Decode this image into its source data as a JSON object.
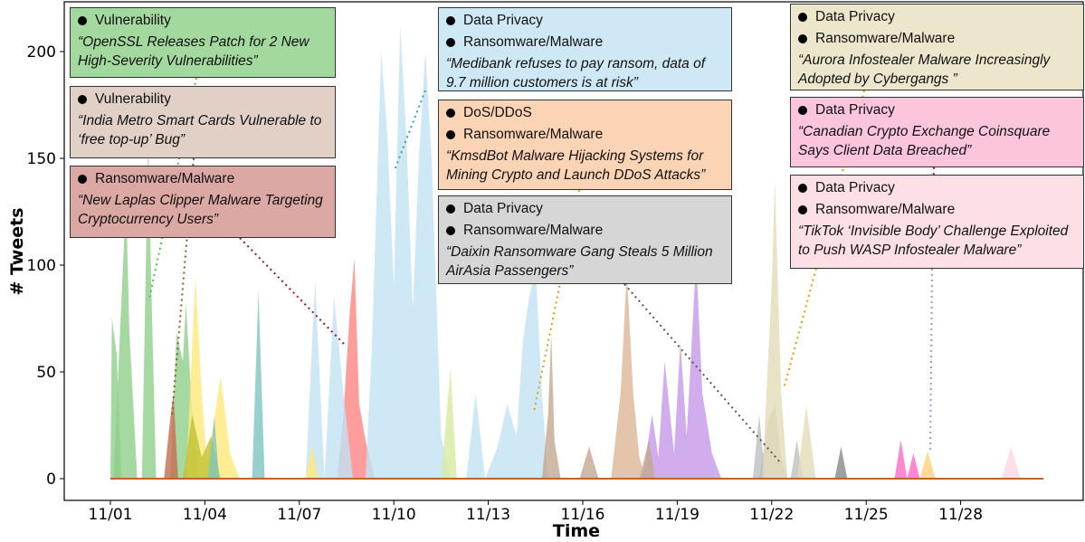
{
  "chart_data": {
    "type": "area",
    "xlabel": "Time",
    "ylabel": "# Tweets",
    "ylim": [
      0,
      225
    ],
    "yticks": [
      0,
      50,
      100,
      150,
      200
    ],
    "xticks": [
      "11/01",
      "11/04",
      "11/07",
      "11/10",
      "11/13",
      "11/16",
      "11/19",
      "11/22",
      "11/25",
      "11/28"
    ],
    "xlim": [
      0,
      30
    ],
    "series": [
      {
        "color": "#8fcf8a",
        "points": [
          [
            0,
            0
          ],
          [
            0.05,
            75
          ],
          [
            0.2,
            58
          ],
          [
            0.35,
            0
          ]
        ]
      },
      {
        "color": "#8fcf8a",
        "points": [
          [
            0.1,
            0
          ],
          [
            0.4,
            100
          ],
          [
            0.5,
            130
          ],
          [
            0.6,
            70
          ],
          [
            0.85,
            0
          ]
        ]
      },
      {
        "color": "#8fcf8a",
        "points": [
          [
            1.0,
            0
          ],
          [
            1.2,
            160
          ],
          [
            1.3,
            90
          ],
          [
            1.45,
            0
          ]
        ]
      },
      {
        "color": "#8fcf8a",
        "points": [
          [
            1.9,
            0
          ],
          [
            2.1,
            68
          ],
          [
            2.3,
            55
          ],
          [
            2.4,
            82
          ],
          [
            2.6,
            30
          ],
          [
            2.8,
            0
          ]
        ]
      },
      {
        "color": "#c76b4f",
        "points": [
          [
            1.7,
            0
          ],
          [
            1.9,
            28
          ],
          [
            2.0,
            40
          ],
          [
            2.15,
            0
          ]
        ]
      },
      {
        "color": "#ffe97a",
        "points": [
          [
            2.4,
            0
          ],
          [
            2.7,
            95
          ],
          [
            2.9,
            40
          ],
          [
            3.1,
            0
          ]
        ]
      },
      {
        "color": "#ffe97a",
        "points": [
          [
            3.0,
            0
          ],
          [
            3.3,
            28
          ],
          [
            3.5,
            48
          ],
          [
            3.8,
            12
          ],
          [
            4.1,
            0
          ]
        ]
      },
      {
        "color": "#c2c233",
        "points": [
          [
            2.3,
            0
          ],
          [
            2.6,
            30
          ],
          [
            2.9,
            10
          ],
          [
            3.2,
            20
          ],
          [
            3.5,
            0
          ]
        ]
      },
      {
        "color": "#7ec4c1",
        "points": [
          [
            3.1,
            0
          ],
          [
            3.3,
            29
          ],
          [
            3.45,
            0
          ]
        ]
      },
      {
        "color": "#7ec4c1",
        "points": [
          [
            4.5,
            0
          ],
          [
            4.7,
            88
          ],
          [
            4.9,
            0
          ]
        ]
      },
      {
        "color": "#c2e2f2",
        "points": [
          [
            6.2,
            0
          ],
          [
            6.5,
            93
          ],
          [
            6.8,
            0
          ]
        ]
      },
      {
        "color": "#ffe97a",
        "points": [
          [
            6.2,
            0
          ],
          [
            6.4,
            16
          ],
          [
            6.6,
            0
          ]
        ]
      },
      {
        "color": "#ff8585",
        "points": [
          [
            7.2,
            0
          ],
          [
            7.4,
            30
          ],
          [
            7.6,
            78
          ],
          [
            7.75,
            103
          ],
          [
            7.9,
            35
          ],
          [
            8.1,
            18
          ],
          [
            8.4,
            0
          ]
        ]
      },
      {
        "color": "#c2e2f2",
        "points": [
          [
            6.8,
            0
          ],
          [
            7.1,
            86
          ],
          [
            7.4,
            40
          ],
          [
            7.7,
            0
          ]
        ]
      },
      {
        "color": "#c2e2f2",
        "points": [
          [
            8.1,
            0
          ],
          [
            8.3,
            60
          ],
          [
            8.6,
            200
          ],
          [
            8.8,
            160
          ],
          [
            9.0,
            90
          ],
          [
            9.2,
            212
          ],
          [
            9.4,
            160
          ],
          [
            9.6,
            80
          ],
          [
            9.8,
            150
          ],
          [
            10.0,
            200
          ],
          [
            10.2,
            150
          ],
          [
            10.5,
            20
          ],
          [
            10.8,
            0
          ]
        ]
      },
      {
        "color": "#d8eaa0",
        "points": [
          [
            10.5,
            0
          ],
          [
            10.8,
            52
          ],
          [
            11.0,
            0
          ]
        ]
      },
      {
        "color": "#c2e2f2",
        "points": [
          [
            11.3,
            0
          ],
          [
            11.6,
            40
          ],
          [
            11.9,
            0
          ]
        ]
      },
      {
        "color": "#c2e2f2",
        "points": [
          [
            11.9,
            0
          ],
          [
            12.3,
            15
          ],
          [
            12.6,
            35
          ],
          [
            12.9,
            20
          ],
          [
            13.1,
            65
          ],
          [
            13.3,
            85
          ],
          [
            13.5,
            100
          ],
          [
            13.7,
            40
          ],
          [
            13.9,
            0
          ]
        ]
      },
      {
        "color": "#c4a791",
        "points": [
          [
            13.7,
            0
          ],
          [
            13.9,
            30
          ],
          [
            14.0,
            68
          ],
          [
            14.1,
            18
          ],
          [
            14.3,
            0
          ]
        ]
      },
      {
        "color": "#c4a791",
        "points": [
          [
            14.9,
            0
          ],
          [
            15.2,
            15
          ],
          [
            15.5,
            0
          ]
        ]
      },
      {
        "color": "#ddb797",
        "points": [
          [
            15.9,
            0
          ],
          [
            16.2,
            40
          ],
          [
            16.4,
            97
          ],
          [
            16.6,
            40
          ],
          [
            16.8,
            10
          ],
          [
            17.0,
            0
          ]
        ]
      },
      {
        "color": "#c599e8",
        "points": [
          [
            16.9,
            0
          ],
          [
            17.2,
            30
          ],
          [
            17.4,
            10
          ],
          [
            17.6,
            55
          ],
          [
            17.9,
            12
          ],
          [
            18.1,
            64
          ],
          [
            18.3,
            20
          ],
          [
            18.6,
            103
          ],
          [
            18.8,
            40
          ],
          [
            19.1,
            12
          ],
          [
            19.4,
            0
          ]
        ]
      },
      {
        "color": "#c4a791",
        "points": [
          [
            16.8,
            0
          ],
          [
            17.1,
            18
          ],
          [
            17.3,
            0
          ]
        ]
      },
      {
        "color": "#bfbfbf",
        "points": [
          [
            20.4,
            0
          ],
          [
            20.6,
            30
          ],
          [
            20.8,
            0
          ]
        ]
      },
      {
        "color": "#bfbfbf",
        "points": [
          [
            20.6,
            0
          ],
          [
            20.9,
            28
          ],
          [
            21.1,
            34
          ],
          [
            21.3,
            10
          ],
          [
            21.5,
            0
          ]
        ]
      },
      {
        "color": "#e2dcb8",
        "points": [
          [
            20.7,
            0
          ],
          [
            21.0,
            90
          ],
          [
            21.1,
            140
          ],
          [
            21.3,
            40
          ],
          [
            21.5,
            0
          ]
        ]
      },
      {
        "color": "#bfbfbf",
        "points": [
          [
            21.6,
            0
          ],
          [
            21.8,
            18
          ],
          [
            22.0,
            0
          ]
        ]
      },
      {
        "color": "#e2dcb8",
        "points": [
          [
            21.8,
            0
          ],
          [
            22.1,
            34
          ],
          [
            22.4,
            0
          ]
        ]
      },
      {
        "color": "#888888",
        "points": [
          [
            23.0,
            0
          ],
          [
            23.2,
            15
          ],
          [
            23.4,
            0
          ]
        ]
      },
      {
        "color": "#ff69c7",
        "points": [
          [
            24.9,
            0
          ],
          [
            25.1,
            18
          ],
          [
            25.3,
            0
          ]
        ]
      },
      {
        "color": "#ff69c7",
        "points": [
          [
            25.3,
            0
          ],
          [
            25.5,
            12
          ],
          [
            25.7,
            0
          ]
        ]
      },
      {
        "color": "#ffd27a",
        "points": [
          [
            25.7,
            0
          ],
          [
            25.95,
            13
          ],
          [
            26.2,
            0
          ]
        ]
      },
      {
        "color": "#ffd6e0",
        "points": [
          [
            28.3,
            0
          ],
          [
            28.6,
            15
          ],
          [
            28.9,
            0
          ]
        ]
      }
    ]
  },
  "annotations": [
    {
      "color": "#a3d99e",
      "categories": [
        "Vulnerability"
      ],
      "headline": "“OpenSSL Releases Patch for 2 New High-Severity Vulnerabilities”",
      "line_color": "#4fbf4f"
    },
    {
      "color": "#e0d0c6",
      "categories": [
        "Vulnerability"
      ],
      "headline": "“India Metro Smart Cards Vulnerable to ‘free top-up’ Bug”",
      "line_color": "#8b5a2b"
    },
    {
      "color": "#dca8a4",
      "categories": [
        "Ransomware/Malware"
      ],
      "headline": "“New Laplas Clipper Malware Targeting Cryptocurrency Users”",
      "line_color": "#a0102a"
    },
    {
      "color": "#cfe8f5",
      "categories": [
        "Data Privacy",
        "Ransomware/Malware"
      ],
      "headline": "“Medibank refuses to pay ransom, data of 9.7 million customers is at risk”",
      "line_color": "#2ca59a"
    },
    {
      "color": "#fbd3b5",
      "categories": [
        "DoS/DDoS",
        "Ransomware/Malware"
      ],
      "headline": "“KmsdBot Malware Hijacking Systems for Mining Crypto and Launch DDoS Attacks”",
      "line_color": "#d4a017"
    },
    {
      "color": "#d6d6d6",
      "categories": [
        "Data Privacy",
        "Ransomware/Malware"
      ],
      "headline": "“Daixin Ransomware Gang Steals 5 Million AirAsia Passengers”",
      "line_color": "#555555"
    },
    {
      "color": "#ebe6cc",
      "categories": [
        "Data Privacy",
        "Ransomware/Malware"
      ],
      "headline": "“Aurora Infostealer Malware Increasingly Adopted by Cybergangs ”",
      "line_color": "#e0a000"
    },
    {
      "color": "#fcc5dc",
      "categories": [
        "Data Privacy"
      ],
      "headline": "“Canadian Crypto Exchange Coinsquare Says Client Data Breached”",
      "line_color": "#d000d0"
    },
    {
      "color": "#fde0e6",
      "categories": [
        "Data Privacy",
        "Ransomware/Malware"
      ],
      "headline": "“TikTok ‘Invisible Body’ Challenge Exploited to Push WASP Infostealer Malware”",
      "line_color": "#b08ef0"
    }
  ]
}
